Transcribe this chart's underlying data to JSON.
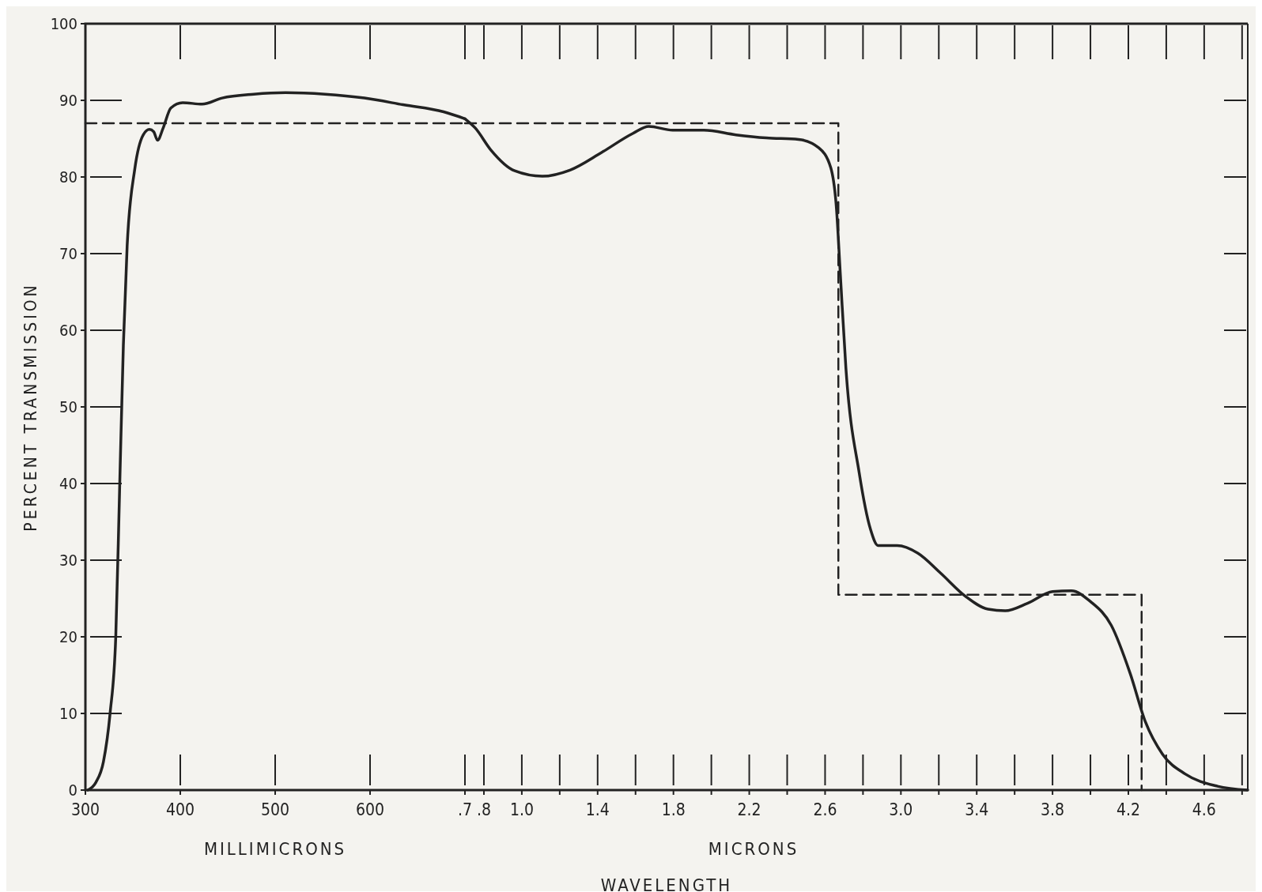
{
  "chart_data": [
    {
      "type": "line",
      "xlabel": "MILLIMICRONS",
      "ylabel": "PERCENT TRANSMISSION",
      "xlim": [
        300,
        700
      ],
      "xticks": [
        300,
        400,
        500,
        600
      ],
      "ylim": [
        0,
        100
      ],
      "yticks": [
        0,
        10,
        20,
        30,
        40,
        50,
        60,
        70,
        80,
        90,
        100
      ],
      "grid": false,
      "marker": "none",
      "series": [
        {
          "color": "#222222",
          "line_style": "solid",
          "x": [
            302.5,
            311,
            319,
            326,
            332,
            336,
            340,
            344,
            352,
            361,
            367.5,
            372,
            376,
            382,
            390,
            402.5,
            423,
            444,
            477.5,
            511,
            552.5,
            594,
            636,
            677.5,
            700
          ],
          "values": [
            0,
            1,
            3.7,
            10,
            20,
            39,
            58,
            71,
            81,
            85.5,
            86.2,
            85.9,
            84.8,
            86.4,
            89,
            89.7,
            89.5,
            90.3,
            90.8,
            91,
            90.8,
            90.3,
            89.4,
            88.5,
            87.6
          ]
        },
        {
          "color": "#222222",
          "line_style": "dashed",
          "x": [
            300,
            700
          ],
          "values": [
            87,
            87
          ]
        }
      ]
    },
    {
      "type": "line",
      "xlabel": "MICRONS",
      "xlim": [
        0.7,
        4.83
      ],
      "xticks": [
        {
          "value": 0.7,
          "label": ".7"
        },
        {
          "value": 0.8,
          "label": ".8"
        },
        {
          "value": 1.0,
          "label": "1.0"
        },
        {
          "value": 1.2,
          "label": null
        },
        {
          "value": 1.4,
          "label": "1.4"
        },
        {
          "value": 1.6,
          "label": null
        },
        {
          "value": 1.8,
          "label": "1.8"
        },
        {
          "value": 2.0,
          "label": null
        },
        {
          "value": 2.2,
          "label": "2.2"
        },
        {
          "value": 2.4,
          "label": null
        },
        {
          "value": 2.6,
          "label": "2.6"
        },
        {
          "value": 2.8,
          "label": null
        },
        {
          "value": 3.0,
          "label": "3.0"
        },
        {
          "value": 3.2,
          "label": null
        },
        {
          "value": 3.4,
          "label": "3.4"
        },
        {
          "value": 3.6,
          "label": null
        },
        {
          "value": 3.8,
          "label": "3.8"
        },
        {
          "value": 4.0,
          "label": null
        },
        {
          "value": 4.2,
          "label": "4.2"
        },
        {
          "value": 4.4,
          "label": null
        },
        {
          "value": 4.6,
          "label": "4.6"
        },
        {
          "value": 4.8,
          "label": null
        }
      ],
      "ylim": [
        0,
        100
      ],
      "yticks": [
        0,
        10,
        20,
        30,
        40,
        50,
        60,
        70,
        80,
        90,
        100
      ],
      "tick_labels": "x",
      "grid": false,
      "marker": "none",
      "annotations": [
        "WAVELENGTH"
      ],
      "series": [
        {
          "color": "#222222",
          "line_style": "solid",
          "x": [
            0.7,
            0.754,
            0.8375,
            0.9625,
            1.108,
            1.254,
            1.421,
            1.587,
            1.67,
            1.796,
            1.96,
            2.13,
            2.29,
            2.46,
            2.567,
            2.63,
            2.66,
            2.68,
            2.71,
            2.78,
            2.84,
            2.88,
            2.98,
            3.09,
            3.21,
            3.34,
            3.46,
            3.55,
            3.67,
            3.8,
            3.9,
            4.0,
            4.11,
            4.21,
            4.29,
            4.38,
            4.5,
            4.67,
            4.83
          ],
          "values": [
            87.6,
            86.4,
            83.5,
            80.8,
            80.1,
            80.9,
            83.2,
            85.7,
            86.6,
            86.1,
            86.1,
            85.5,
            85.1,
            84.9,
            83.8,
            81.2,
            75.9,
            67.5,
            55,
            41.4,
            34,
            31.9,
            31.9,
            30.9,
            28.3,
            25.3,
            23.6,
            23.4,
            24.4,
            25.9,
            26,
            24.6,
            21.5,
            15.2,
            8.9,
            4.7,
            2.1,
            0.5,
            0
          ]
        },
        {
          "color": "#222222",
          "line_style": "dashed",
          "x": [
            0.7,
            2.67,
            2.67,
            4.27,
            4.27
          ],
          "values": [
            87,
            87,
            25.5,
            25.5,
            0
          ]
        }
      ]
    }
  ]
}
